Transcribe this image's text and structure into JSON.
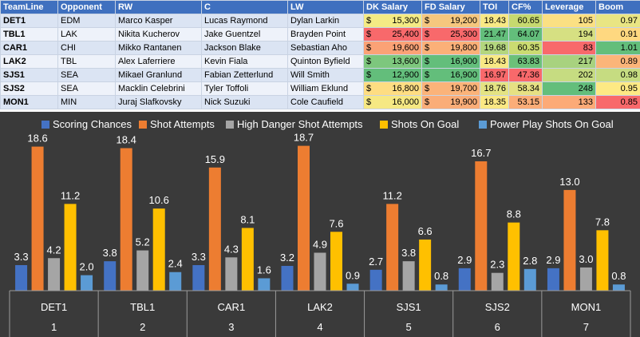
{
  "table": {
    "columns": [
      "TeamLine",
      "Opponent",
      "RW",
      "C",
      "LW",
      "DK Salary",
      "FD Salary",
      "TOI",
      "CF%",
      "Leverage",
      "Boom"
    ],
    "rows": [
      {
        "team": "DET1",
        "opp": "EDM",
        "rw": "Marco Kasper",
        "c": "Lucas Raymond",
        "lw": "Dylan Larkin",
        "dk": "15,300",
        "fd": "19,200",
        "toi": "18.43",
        "cf": "60.65",
        "lev": "105",
        "boom": "0.97",
        "colors": {
          "dk": "#f4eb84",
          "fd": "#f5c77e",
          "toi": "#f8e985",
          "cf": "#c6d96f",
          "lev": "#fbe083",
          "boom": "#e9e583"
        }
      },
      {
        "team": "TBL1",
        "opp": "LAK",
        "rw": "Nikita Kucherov",
        "c": "Jake Guentzel",
        "lw": "Brayden Point",
        "dk": "25,400",
        "fd": "25,300",
        "toi": "21.47",
        "cf": "64.07",
        "lev": "194",
        "boom": "0.91",
        "colors": {
          "dk": "#f8696b",
          "fd": "#f8696b",
          "toi": "#63be7b",
          "cf": "#63be7b",
          "lev": "#d6e082",
          "boom": "#fed880"
        }
      },
      {
        "team": "CAR1",
        "opp": "CHI",
        "rw": "Mikko Rantanen",
        "c": "Jackson Blake",
        "lw": "Sebastian Aho",
        "dk": "19,600",
        "fd": "19,800",
        "toi": "19.68",
        "cf": "60.35",
        "lev": "83",
        "boom": "1.01",
        "colors": {
          "dk": "#fba276",
          "fd": "#fbb078",
          "toi": "#b4d67e",
          "cf": "#cbdb71",
          "lev": "#f8696b",
          "boom": "#63be7b"
        }
      },
      {
        "team": "LAK2",
        "opp": "TBL",
        "rw": "Alex Laferriere",
        "c": "Kevin Fiala",
        "lw": "Quinton Byfield",
        "dk": "13,600",
        "fd": "16,900",
        "toi": "18.43",
        "cf": "63.83",
        "lev": "217",
        "boom": "0.89",
        "colors": {
          "dk": "#7dc77d",
          "fd": "#63be7b",
          "toi": "#f8e985",
          "cf": "#6cc079",
          "lev": "#a8d27f",
          "boom": "#fbb579"
        }
      },
      {
        "team": "SJS1",
        "opp": "SEA",
        "rw": "Mikael Granlund",
        "c": "Fabian Zetterlund",
        "lw": "Will Smith",
        "dk": "12,900",
        "fd": "16,900",
        "toi": "16.97",
        "cf": "47.36",
        "lev": "202",
        "boom": "0.98",
        "colors": {
          "dk": "#63be7b",
          "fd": "#63be7b",
          "toi": "#f8696b",
          "cf": "#f8696b",
          "lev": "#c6dc81",
          "boom": "#c6dc81"
        }
      },
      {
        "team": "SJS2",
        "opp": "SEA",
        "rw": "Macklin Celebrini",
        "c": "Tyler Toffoli",
        "lw": "William Eklund",
        "dk": "16,800",
        "fd": "19,700",
        "toi": "18.76",
        "cf": "58.34",
        "lev": "248",
        "boom": "0.95",
        "colors": {
          "dk": "#fedd82",
          "fd": "#fbb379",
          "toi": "#e4e383",
          "cf": "#e6e083",
          "lev": "#63be7b",
          "boom": "#fde984"
        }
      },
      {
        "team": "MON1",
        "opp": "MIN",
        "rw": "Juraj Slafkovsky",
        "c": "Nick Suzuki",
        "lw": "Cole Caufield",
        "dk": "16,000",
        "fd": "19,900",
        "toi": "18.35",
        "cf": "53.15",
        "lev": "133",
        "boom": "0.85",
        "colors": {
          "dk": "#f6e883",
          "fd": "#faad78",
          "toi": "#fbe884",
          "cf": "#fbad78",
          "lev": "#fcaa77",
          "boom": "#f8696b"
        }
      }
    ]
  },
  "chart_data": {
    "type": "bar",
    "categories": [
      "DET1",
      "TBL1",
      "CAR1",
      "LAK2",
      "SJS1",
      "SJS2",
      "MON1"
    ],
    "category_numbers": [
      "1",
      "2",
      "3",
      "4",
      "5",
      "6",
      "7"
    ],
    "series": [
      {
        "name": "Scoring Chances",
        "color": "#4472c4",
        "values": [
          3.3,
          3.8,
          3.3,
          3.2,
          2.7,
          2.9,
          2.9
        ]
      },
      {
        "name": "Shot Attempts",
        "color": "#ed7d31",
        "values": [
          18.6,
          18.4,
          15.9,
          18.7,
          11.2,
          16.7,
          13.0
        ]
      },
      {
        "name": "High Danger Shot Attempts",
        "color": "#a5a5a5",
        "values": [
          4.2,
          5.2,
          4.3,
          4.9,
          3.8,
          2.3,
          3.0
        ]
      },
      {
        "name": "Shots On Goal",
        "color": "#ffc000",
        "values": [
          11.2,
          10.6,
          8.1,
          7.6,
          6.6,
          8.8,
          7.8
        ]
      },
      {
        "name": "Power Play Shots On Goal",
        "color": "#5b9bd5",
        "values": [
          2.0,
          2.4,
          1.6,
          0.9,
          0.8,
          2.8,
          0.8
        ]
      }
    ],
    "data_labels": [
      [
        "3.3",
        "18.6",
        "4.2",
        "11.2",
        "2.0"
      ],
      [
        "3.8",
        "18.4",
        "5.2",
        "10.6",
        "2.4"
      ],
      [
        "3.3",
        "15.9",
        "4.3",
        "8.1",
        "1.6"
      ],
      [
        "3.2",
        "18.7",
        "4.9",
        "7.6",
        "0.9"
      ],
      [
        "2.7",
        "11.2",
        "3.8",
        "6.6",
        "0.8"
      ],
      [
        "2.9",
        "16.7",
        "2.3",
        "8.8",
        "2.8"
      ],
      [
        "2.9",
        "13.0",
        "3.0",
        "7.8",
        "0.8"
      ]
    ],
    "ylim": [
      0,
      20
    ],
    "legend_position": "top",
    "title": "",
    "xlabel": "",
    "ylabel": ""
  }
}
